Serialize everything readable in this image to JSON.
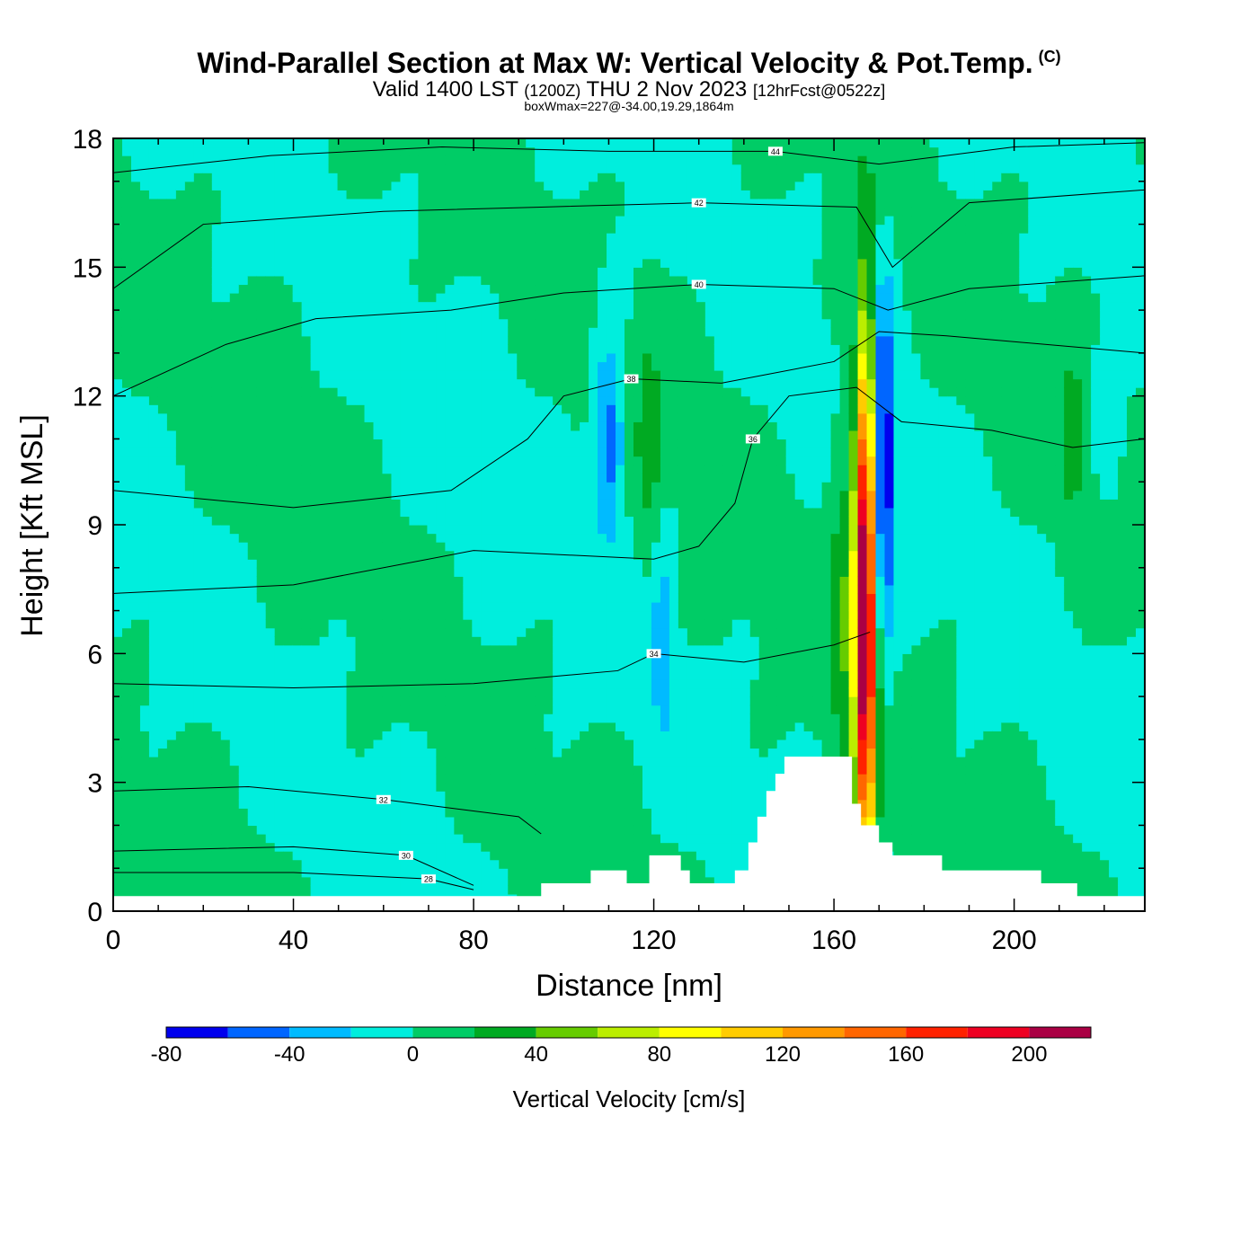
{
  "chart_data": {
    "type": "heatmap",
    "title": "Wind-Parallel Section at Max W: Vertical Velocity & Pot.Temp.",
    "title_mark": "(C)",
    "subtitle": {
      "prefix": "Valid 1400 LST",
      "utc": "(1200Z)",
      "date": "THU 2 Nov 2023",
      "forecast": "[12hrFcst@0522z]"
    },
    "note": "boxWmax=227@-34.00,19.29,1864m",
    "xlabel": "Distance [nm]",
    "ylabel": "Height [Kft MSL]",
    "xlim": [
      0,
      229
    ],
    "ylim": [
      0,
      18
    ],
    "xticks": [
      0,
      40,
      80,
      120,
      160,
      200
    ],
    "yticks": [
      0,
      3,
      6,
      9,
      12,
      15,
      18
    ],
    "colorbar": {
      "title": "Vertical Velocity [cm/s]",
      "levels": [
        -80,
        -60,
        -40,
        -20,
        0,
        20,
        40,
        60,
        80,
        100,
        120,
        140,
        160,
        180,
        200,
        220
      ],
      "tick_labels": [
        "-80",
        "-40",
        "0",
        "40",
        "80",
        "120",
        "160",
        "200"
      ],
      "tick_values": [
        -80,
        -40,
        0,
        40,
        80,
        120,
        160,
        200
      ],
      "colors": [
        "#0000ee",
        "#0066ff",
        "#00bbff",
        "#00eedd",
        "#00cc66",
        "#00aa22",
        "#66cc00",
        "#bbee00",
        "#ffff00",
        "#ffcc00",
        "#ff9900",
        "#ff6600",
        "#ff2200",
        "#ee0022",
        "#aa0044"
      ]
    },
    "w_features": [
      {
        "x": 167,
        "z": 7,
        "w": 227,
        "sx": 1.6,
        "sz": 4.5
      },
      {
        "x": 171,
        "z": 10.5,
        "w": -85,
        "sx": 1.6,
        "sz": 2.8
      },
      {
        "x": 110,
        "z": 11.0,
        "w": -55,
        "sx": 2.2,
        "sz": 1.6
      },
      {
        "x": 122,
        "z": 6.5,
        "w": -30,
        "sx": 1.8,
        "sz": 1.8
      },
      {
        "x": 221,
        "z": 11.8,
        "w": -25,
        "sx": 2,
        "sz": 1.2
      },
      {
        "x": 119,
        "z": 11.0,
        "w": 30,
        "sx": 2,
        "sz": 1.8
      },
      {
        "x": 163,
        "z": 7,
        "w": 35,
        "sx": 3,
        "sz": 3
      },
      {
        "x": 213,
        "z": 11,
        "w": 28,
        "sx": 2,
        "sz": 1.5
      }
    ],
    "terrain": [
      [
        0,
        0.35
      ],
      [
        95,
        0.35
      ],
      [
        95,
        0.65
      ],
      [
        106,
        0.65
      ],
      [
        106,
        0.95
      ],
      [
        114,
        0.95
      ],
      [
        114,
        0.65
      ],
      [
        119,
        0.65
      ],
      [
        119,
        1.3
      ],
      [
        126,
        1.3
      ],
      [
        126,
        0.95
      ],
      [
        128,
        0.95
      ],
      [
        128,
        0.65
      ],
      [
        138,
        0.65
      ],
      [
        138,
        0.95
      ],
      [
        141,
        0.95
      ],
      [
        141,
        1.6
      ],
      [
        143,
        1.6
      ],
      [
        143,
        2.2
      ],
      [
        145,
        2.2
      ],
      [
        145,
        2.8
      ],
      [
        147,
        2.8
      ],
      [
        147,
        3.2
      ],
      [
        149,
        3.2
      ],
      [
        149,
        3.6
      ],
      [
        164,
        3.6
      ],
      [
        164,
        2.5
      ],
      [
        166,
        2.5
      ],
      [
        166,
        2.0
      ],
      [
        170,
        2.0
      ],
      [
        170,
        1.6
      ],
      [
        173,
        1.6
      ],
      [
        173,
        1.3
      ],
      [
        184,
        1.3
      ],
      [
        184,
        0.95
      ],
      [
        206,
        0.95
      ],
      [
        206,
        0.65
      ],
      [
        214,
        0.65
      ],
      [
        214,
        0.35
      ],
      [
        229,
        0.35
      ]
    ],
    "theta_contours": [
      {
        "value": 28,
        "label": "28",
        "points": [
          [
            0,
            0.9
          ],
          [
            40,
            0.9
          ],
          [
            70,
            0.75
          ],
          [
            80,
            0.5
          ]
        ]
      },
      {
        "value": 30,
        "label": "30",
        "points": [
          [
            0,
            1.4
          ],
          [
            40,
            1.5
          ],
          [
            65,
            1.3
          ],
          [
            80,
            0.6
          ]
        ]
      },
      {
        "value": 32,
        "label": "32",
        "points": [
          [
            0,
            2.8
          ],
          [
            30,
            2.9
          ],
          [
            60,
            2.6
          ],
          [
            90,
            2.2
          ],
          [
            95,
            1.8
          ]
        ]
      },
      {
        "value": 34,
        "label": "34",
        "points": [
          [
            0,
            5.3
          ],
          [
            40,
            5.2
          ],
          [
            80,
            5.3
          ],
          [
            112,
            5.6
          ],
          [
            120,
            6.0
          ],
          [
            140,
            5.8
          ],
          [
            160,
            6.2
          ],
          [
            168,
            6.5
          ]
        ]
      },
      {
        "value": 36,
        "label": "36",
        "points": [
          [
            0,
            7.4
          ],
          [
            40,
            7.6
          ],
          [
            80,
            8.4
          ],
          [
            120,
            8.2
          ],
          [
            130,
            8.5
          ],
          [
            138,
            9.5
          ],
          [
            142,
            11.0
          ],
          [
            150,
            12.0
          ],
          [
            165,
            12.2
          ],
          [
            175,
            11.4
          ],
          [
            195,
            11.2
          ],
          [
            213,
            10.8
          ],
          [
            229,
            11.0
          ]
        ]
      },
      {
        "value": 38,
        "label": "38",
        "points": [
          [
            0,
            9.8
          ],
          [
            40,
            9.4
          ],
          [
            75,
            9.8
          ],
          [
            92,
            11.0
          ],
          [
            100,
            12.0
          ],
          [
            115,
            12.4
          ],
          [
            135,
            12.3
          ],
          [
            160,
            12.8
          ],
          [
            170,
            13.5
          ],
          [
            185,
            13.4
          ],
          [
            229,
            13.0
          ]
        ]
      },
      {
        "value": 40,
        "label": "40",
        "points": [
          [
            0,
            12.0
          ],
          [
            25,
            13.2
          ],
          [
            45,
            13.8
          ],
          [
            75,
            14.0
          ],
          [
            100,
            14.4
          ],
          [
            130,
            14.6
          ],
          [
            160,
            14.5
          ],
          [
            172,
            14.0
          ],
          [
            190,
            14.5
          ],
          [
            229,
            14.8
          ]
        ]
      },
      {
        "value": 42,
        "label": "42",
        "points": [
          [
            0,
            14.5
          ],
          [
            20,
            16.0
          ],
          [
            60,
            16.3
          ],
          [
            95,
            16.4
          ],
          [
            130,
            16.5
          ],
          [
            165,
            16.4
          ],
          [
            173,
            15.0
          ],
          [
            190,
            16.5
          ],
          [
            229,
            16.8
          ]
        ]
      },
      {
        "value": 44,
        "label": "44",
        "points": [
          [
            0,
            17.2
          ],
          [
            35,
            17.6
          ],
          [
            73,
            17.8
          ],
          [
            110,
            17.7
          ],
          [
            147,
            17.7
          ],
          [
            170,
            17.4
          ],
          [
            200,
            17.8
          ],
          [
            229,
            17.9
          ]
        ]
      }
    ]
  }
}
